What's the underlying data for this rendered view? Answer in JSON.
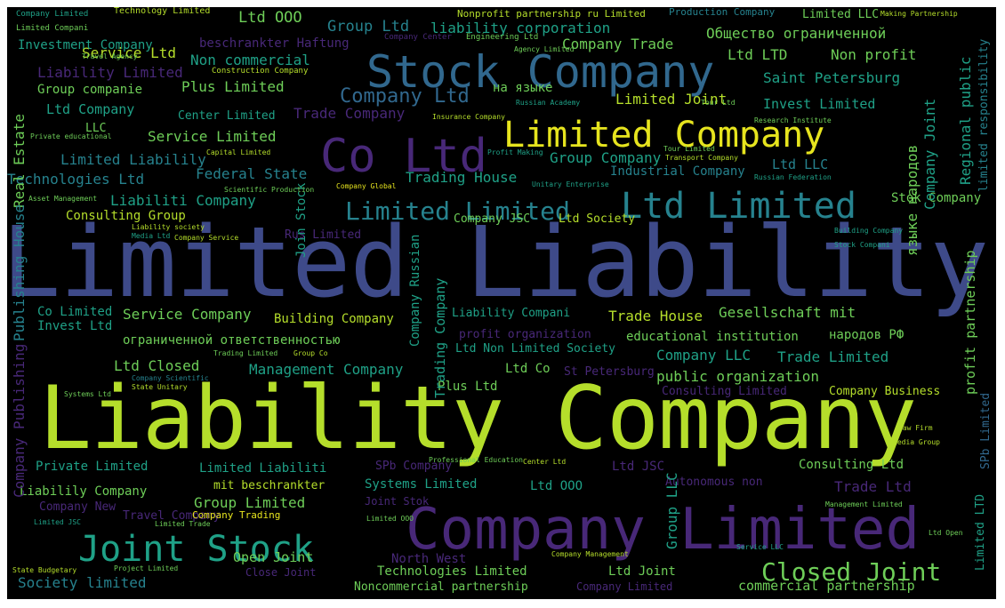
{
  "palette": {
    "yellow": "#e6e41e",
    "lime": "#b5de2b",
    "green": "#6ece58",
    "teal": "#1fa187",
    "cyan": "#26828e",
    "blue": "#31688e",
    "indigo": "#3e4a89",
    "purple": "#482878",
    "dark": "#440154"
  },
  "words": [
    {
      "text": "Limited Liability",
      "color": "indigo"
    },
    {
      "text": "Liability Company",
      "color": "lime"
    },
    {
      "text": "Company Limited",
      "color": "purple"
    },
    {
      "text": "Stock Company",
      "color": "blue"
    },
    {
      "text": "Co Ltd",
      "color": "purple"
    },
    {
      "text": "Limited Company",
      "color": "yellow"
    },
    {
      "text": "Joint Stock",
      "color": "teal"
    },
    {
      "text": "Ltd Limited",
      "color": "cyan"
    },
    {
      "text": "Closed Joint",
      "color": "green"
    },
    {
      "text": "Limited Limited",
      "color": "cyan"
    },
    {
      "text": "Company Ltd",
      "color": "blue"
    },
    {
      "text": "Ltd OOO",
      "color": "green"
    },
    {
      "text": "Group Ltd",
      "color": "cyan"
    },
    {
      "text": "Service Ltd",
      "color": "lime"
    },
    {
      "text": "liability corporation",
      "color": "teal"
    },
    {
      "text": "Общество ограниченной",
      "color": "green"
    },
    {
      "text": "Investment Company",
      "color": "teal"
    },
    {
      "text": "beschrankter Haftung",
      "color": "purple"
    },
    {
      "text": "Company Trade",
      "color": "green"
    },
    {
      "text": "Non commercial",
      "color": "teal"
    },
    {
      "text": "Ltd LTD",
      "color": "green"
    },
    {
      "text": "Non profit",
      "color": "green"
    },
    {
      "text": "Liability Limited",
      "color": "purple"
    },
    {
      "text": "Group companie",
      "color": "green"
    },
    {
      "text": "Plus Limited",
      "color": "green"
    },
    {
      "text": "Saint Petersburg",
      "color": "teal"
    },
    {
      "text": "Regional public",
      "color": "teal"
    },
    {
      "text": "на языке",
      "color": "green"
    },
    {
      "text": "Limited Joint",
      "color": "lime"
    },
    {
      "text": "Ltd Company",
      "color": "teal"
    },
    {
      "text": "Center Limited",
      "color": "teal"
    },
    {
      "text": "Trade Company",
      "color": "purple"
    },
    {
      "text": "Invest Limited",
      "color": "teal"
    },
    {
      "text": "Real Estate",
      "color": "green"
    },
    {
      "text": "LLC",
      "color": "green"
    },
    {
      "text": "Service Limited",
      "color": "green"
    },
    {
      "text": "Limited Liabilily",
      "color": "cyan"
    },
    {
      "text": "Technologies Ltd",
      "color": "cyan"
    },
    {
      "text": "Federal State",
      "color": "cyan"
    },
    {
      "text": "Group Company",
      "color": "teal"
    },
    {
      "text": "Industrial Company",
      "color": "cyan"
    },
    {
      "text": "Ltd LLC",
      "color": "cyan"
    },
    {
      "text": "Trading House",
      "color": "teal"
    },
    {
      "text": "Liabiliti Company",
      "color": "teal"
    },
    {
      "text": "Stok Company",
      "color": "green"
    },
    {
      "text": "Consulting Group",
      "color": "lime"
    },
    {
      "text": "Company JSC",
      "color": "green"
    },
    {
      "text": "Ltd Society",
      "color": "lime"
    },
    {
      "text": "Rus Limited",
      "color": "purple"
    },
    {
      "text": "Trade House",
      "color": "lime"
    },
    {
      "text": "Service Company",
      "color": "green"
    },
    {
      "text": "Building Company",
      "color": "lime"
    },
    {
      "text": "Liability Compani",
      "color": "teal"
    },
    {
      "text": "Gesellschaft mit",
      "color": "green"
    },
    {
      "text": "Co Limited",
      "color": "teal"
    },
    {
      "text": "Invest Ltd",
      "color": "teal"
    },
    {
      "text": "ограниченной ответственностью",
      "color": "green"
    },
    {
      "text": "educational institution",
      "color": "green"
    },
    {
      "text": "народов РФ",
      "color": "green"
    },
    {
      "text": "profit organization",
      "color": "purple"
    },
    {
      "text": "Ltd Non Limited Society",
      "color": "teal"
    },
    {
      "text": "Ltd Closed",
      "color": "green"
    },
    {
      "text": "Company LLC",
      "color": "teal"
    },
    {
      "text": "Trade Limited",
      "color": "teal"
    },
    {
      "text": "Management Company",
      "color": "teal"
    },
    {
      "text": "Ltd Co",
      "color": "green"
    },
    {
      "text": "St Petersburg",
      "color": "purple"
    },
    {
      "text": "public organization",
      "color": "green"
    },
    {
      "text": "Plus Ltd",
      "color": "green"
    },
    {
      "text": "Consulting Limited",
      "color": "purple"
    },
    {
      "text": "Company Business",
      "color": "lime"
    },
    {
      "text": "Private Limited",
      "color": "teal"
    },
    {
      "text": "Limited Liabiliti",
      "color": "teal"
    },
    {
      "text": "SPb Company",
      "color": "purple"
    },
    {
      "text": "Ltd JSC",
      "color": "purple"
    },
    {
      "text": "Consulting Ltd",
      "color": "green"
    },
    {
      "text": "Liabilily Company",
      "color": "green"
    },
    {
      "text": "mit beschrankter",
      "color": "lime"
    },
    {
      "text": "Systems Limited",
      "color": "teal"
    },
    {
      "text": "Autonomous non",
      "color": "purple"
    },
    {
      "text": "Trade Ltd",
      "color": "purple"
    },
    {
      "text": "Company New",
      "color": "purple"
    },
    {
      "text": "Group Limited",
      "color": "green"
    },
    {
      "text": "Ltd OOO",
      "color": "teal"
    },
    {
      "text": "Travel Company",
      "color": "purple"
    },
    {
      "text": "Company Trading",
      "color": "yellow"
    },
    {
      "text": "Joint Stok",
      "color": "purple"
    },
    {
      "text": "Group LLC",
      "color": "teal"
    },
    {
      "text": "Open Joint",
      "color": "green"
    },
    {
      "text": "North West",
      "color": "purple"
    },
    {
      "text": "Technologies Limited",
      "color": "green"
    },
    {
      "text": "Ltd Joint",
      "color": "green"
    },
    {
      "text": "Society limited",
      "color": "cyan"
    },
    {
      "text": "Close Joint",
      "color": "purple"
    },
    {
      "text": "Noncommercial partnership",
      "color": "green"
    },
    {
      "text": "Company Limited",
      "color": "purple"
    },
    {
      "text": "commercial partnership",
      "color": "green"
    },
    {
      "text": "Publishing House",
      "color": "cyan"
    },
    {
      "text": "Company Publishing",
      "color": "purple"
    },
    {
      "text": "Join Stock",
      "color": "teal"
    },
    {
      "text": "Company Russian",
      "color": "teal"
    },
    {
      "text": "Trading Company",
      "color": "teal"
    },
    {
      "text": "языке народов",
      "color": "green"
    },
    {
      "text": "Company Joint",
      "color": "teal"
    },
    {
      "text": "profit partnership",
      "color": "green"
    },
    {
      "text": "limited responsibility",
      "color": "cyan"
    },
    {
      "text": "Limited LTD",
      "color": "teal"
    },
    {
      "text": "SPb Limited",
      "color": "blue"
    },
    {
      "text": "Technology Limited",
      "color": "lime"
    },
    {
      "text": "Nonprofit partnership ru Limited",
      "color": "lime"
    },
    {
      "text": "Production Company",
      "color": "cyan"
    },
    {
      "text": "Limited LLC",
      "color": "green"
    },
    {
      "text": "Company Limited",
      "color": "teal"
    },
    {
      "text": "Limited Compani",
      "color": "green"
    },
    {
      "text": "Company Center",
      "color": "purple"
    },
    {
      "text": "Engineering Ltd",
      "color": "green"
    },
    {
      "text": "Agency Limited",
      "color": "green"
    },
    {
      "text": "Construction Company",
      "color": "lime"
    },
    {
      "text": "Travel Agency",
      "color": "green"
    },
    {
      "text": "Making Partnership",
      "color": "lime"
    },
    {
      "text": "Tour Ltd",
      "color": "green"
    },
    {
      "text": "Insurance Company",
      "color": "lime"
    },
    {
      "text": "Russian Academy",
      "color": "teal"
    },
    {
      "text": "Research Institute",
      "color": "green"
    },
    {
      "text": "Capital Limited",
      "color": "lime"
    },
    {
      "text": "Profit Making",
      "color": "teal"
    },
    {
      "text": "Transport Company",
      "color": "lime"
    },
    {
      "text": "Tour Limited",
      "color": "green"
    },
    {
      "text": "Company Global",
      "color": "yellow"
    },
    {
      "text": "Unitary Enterprise",
      "color": "teal"
    },
    {
      "text": "Russian Federation",
      "color": "teal"
    },
    {
      "text": "Scientific Production",
      "color": "green"
    },
    {
      "text": "Asset Management",
      "color": "green"
    },
    {
      "text": "Private educational",
      "color": "green"
    },
    {
      "text": "Liability society",
      "color": "lime"
    },
    {
      "text": "Media Ltd",
      "color": "teal"
    },
    {
      "text": "Company Service",
      "color": "lime"
    },
    {
      "text": "Building Company",
      "color": "teal"
    },
    {
      "text": "Stock Compani",
      "color": "teal"
    },
    {
      "text": "Trading Limited",
      "color": "green"
    },
    {
      "text": "Group Co",
      "color": "lime"
    },
    {
      "text": "Company Scientific",
      "color": "cyan"
    },
    {
      "text": "State Unitary",
      "color": "lime"
    },
    {
      "text": "Systems Ltd",
      "color": "green"
    },
    {
      "text": "Professional Education",
      "color": "green"
    },
    {
      "text": "Center Ltd",
      "color": "lime"
    },
    {
      "text": "Limited Trade",
      "color": "green"
    },
    {
      "text": "Project Limited",
      "color": "green"
    },
    {
      "text": "State Budgetary",
      "color": "lime"
    },
    {
      "text": "Company Management",
      "color": "lime"
    },
    {
      "text": "Service LLC",
      "color": "teal"
    },
    {
      "text": "Ltd Open",
      "color": "green"
    },
    {
      "text": "Management Limited",
      "color": "green"
    },
    {
      "text": "Media Group",
      "color": "lime"
    },
    {
      "text": "Law Firm",
      "color": "lime"
    },
    {
      "text": "Limited JSC",
      "color": "teal"
    },
    {
      "text": "Limited OOO",
      "color": "green"
    }
  ]
}
